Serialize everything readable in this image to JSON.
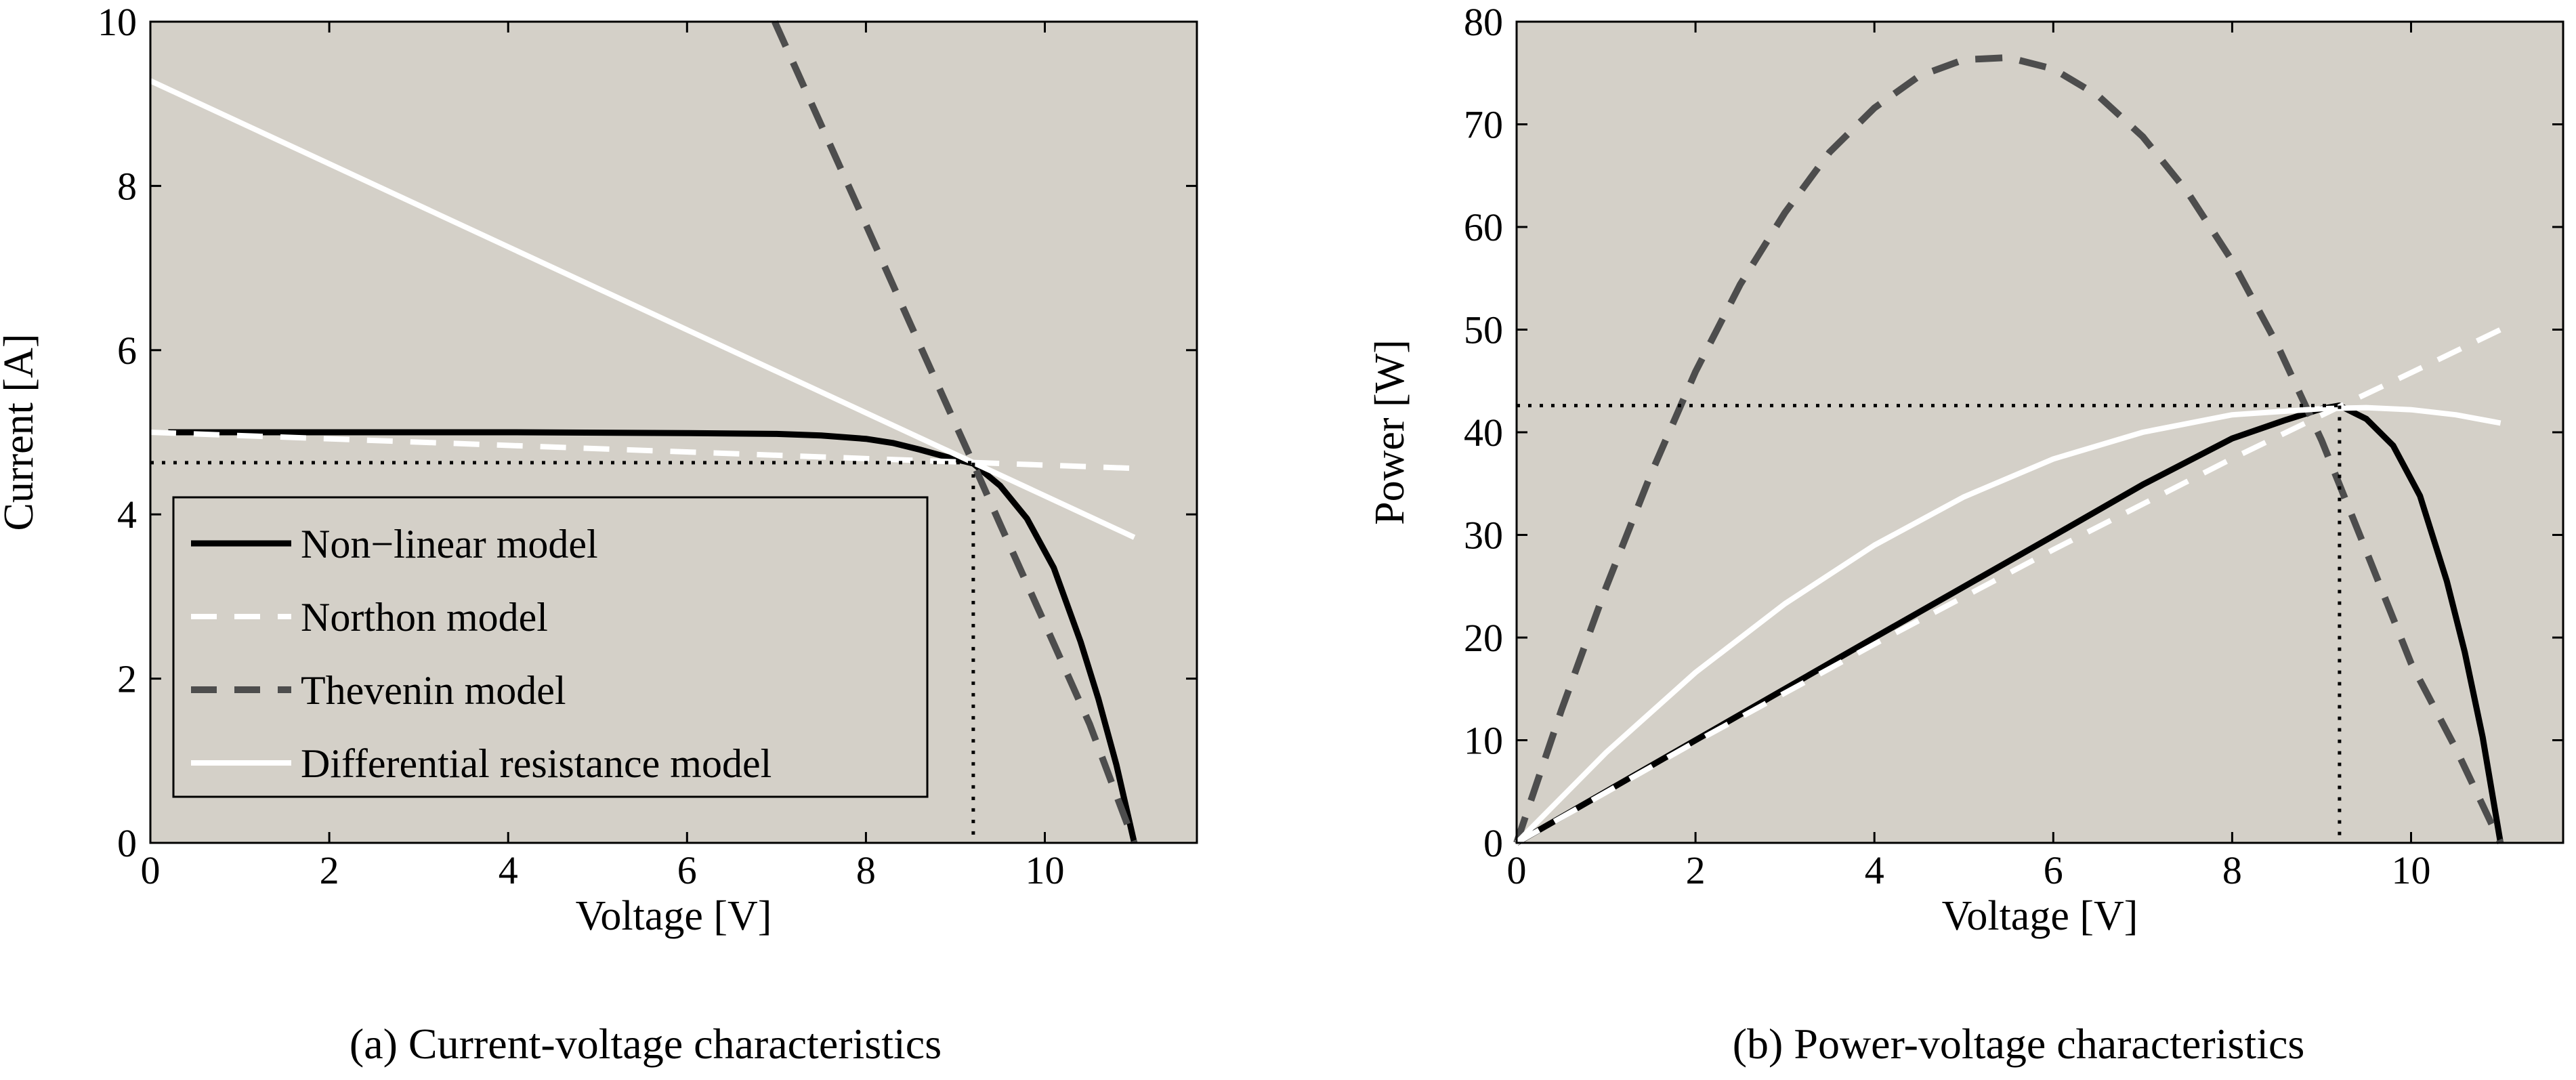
{
  "colors": {
    "plot_background": "#d4d0c8",
    "nonlinear": "#000000",
    "northon": "#ffffff",
    "thevenin": "#4d4d4d",
    "differential": "#ffffff",
    "guide": "#000000"
  },
  "chart_data": [
    {
      "id": "a",
      "type": "line",
      "caption": "(a)  Current-voltage characteristics",
      "xlabel": "Voltage [V]",
      "ylabel": "Current [A]",
      "xlim": [
        0,
        11.7
      ],
      "ylim": [
        0,
        10
      ],
      "xticks": [
        0,
        2,
        4,
        6,
        8,
        10
      ],
      "yticks": [
        0,
        2,
        4,
        6,
        8,
        10
      ],
      "grid": false,
      "legend_position": "bottom-left",
      "mpp": {
        "x": 9.2,
        "y": 4.63
      },
      "series": [
        {
          "name": "Non−linear model",
          "key": "nonlinear",
          "style": "solid",
          "x": [
            0.2,
            2,
            4,
            6,
            7,
            7.5,
            8,
            8.3,
            8.6,
            8.9,
            9.2,
            9.5,
            9.8,
            10.1,
            10.4,
            10.6,
            10.8,
            11.0
          ],
          "y": [
            5.0,
            5.0,
            5.0,
            4.99,
            4.98,
            4.96,
            4.92,
            4.87,
            4.79,
            4.7,
            4.62,
            4.35,
            3.95,
            3.35,
            2.45,
            1.75,
            0.95,
            0.0
          ]
        },
        {
          "name": "Northon model",
          "key": "northon",
          "style": "dashed",
          "x": [
            0,
            11.0
          ],
          "y": [
            5.0,
            4.56
          ]
        },
        {
          "name": "Thevenin model",
          "key": "thevenin",
          "style": "dashed",
          "x": [
            6.98,
            7.5,
            8.0,
            8.5,
            9.0,
            9.2,
            9.5,
            10.0,
            10.5,
            11.0
          ],
          "y": [
            10.0,
            8.74,
            7.53,
            6.31,
            5.1,
            4.62,
            3.88,
            2.67,
            1.45,
            0.0
          ]
        },
        {
          "name": "Differential resistance model",
          "key": "differential",
          "style": "solid",
          "x": [
            0,
            11.0
          ],
          "y": [
            9.28,
            3.72
          ]
        }
      ]
    },
    {
      "id": "b",
      "type": "line",
      "caption": "(b)  Power-voltage characteristics",
      "xlabel": "Voltage [V]",
      "ylabel": "Power [W]",
      "xlim": [
        0,
        11.7
      ],
      "ylim": [
        0,
        80
      ],
      "xticks": [
        0,
        2,
        4,
        6,
        8,
        10
      ],
      "yticks": [
        0,
        10,
        20,
        30,
        40,
        50,
        60,
        70,
        80
      ],
      "grid": false,
      "mpp": {
        "x": 9.2,
        "y": 42.6
      },
      "series": [
        {
          "name": "Non−linear model",
          "key": "nonlinear",
          "style": "solid",
          "x": [
            0,
            2,
            4,
            6,
            7,
            8,
            8.6,
            9.0,
            9.2,
            9.5,
            9.8,
            10.1,
            10.4,
            10.6,
            10.8,
            11.0
          ],
          "y": [
            0,
            10.0,
            20.0,
            29.9,
            34.9,
            39.4,
            41.2,
            42.3,
            42.6,
            41.3,
            38.7,
            33.8,
            25.5,
            18.6,
            10.3,
            0
          ]
        },
        {
          "name": "Northon model",
          "key": "northon",
          "style": "dashed",
          "x": [
            0,
            2,
            4,
            6,
            8,
            9.2,
            10,
            11.0
          ],
          "y": [
            0,
            9.84,
            19.36,
            28.56,
            37.44,
            42.5,
            45.8,
            50.0
          ]
        },
        {
          "name": "Thevenin model",
          "key": "thevenin",
          "style": "dashed",
          "x": [
            0,
            0.5,
            1,
            1.5,
            2,
            2.5,
            3,
            3.5,
            4,
            4.5,
            5,
            5.5,
            6,
            6.5,
            7,
            7.5,
            8,
            8.5,
            9,
            9.5,
            10,
            10.5,
            11.0
          ],
          "y": [
            0,
            12.9,
            24.9,
            35.9,
            45.9,
            54.4,
            61.4,
            67.3,
            71.6,
            74.7,
            76.3,
            76.5,
            75.4,
            72.8,
            68.8,
            63.4,
            56.7,
            48.6,
            39.2,
            28.4,
            17.5,
            9.2,
            0
          ]
        },
        {
          "name": "Differential resistance model",
          "key": "differential",
          "style": "solid",
          "x": [
            0,
            1,
            2,
            3,
            4,
            5,
            6,
            7,
            8,
            9,
            9.5,
            10,
            10.5,
            11.0
          ],
          "y": [
            0,
            8.8,
            16.6,
            23.3,
            29.0,
            33.7,
            37.4,
            40.0,
            41.7,
            42.3,
            42.4,
            42.2,
            41.7,
            40.9
          ]
        }
      ]
    }
  ]
}
